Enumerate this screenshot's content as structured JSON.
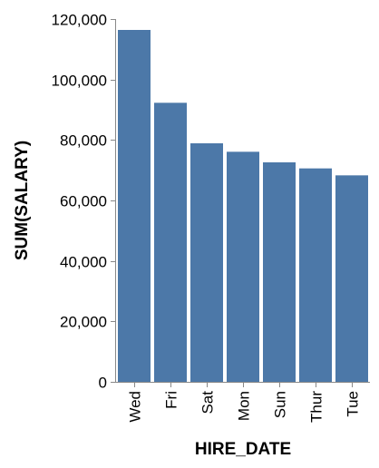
{
  "chart_data": {
    "type": "bar",
    "title": "",
    "xlabel": "HIRE_DATE",
    "ylabel": "SUM(SALARY)",
    "categories": [
      "Wed",
      "Fri",
      "Sat",
      "Mon",
      "Sun",
      "Thur",
      "Tue"
    ],
    "values": [
      116400,
      92300,
      78900,
      76100,
      72600,
      70600,
      68300
    ],
    "ylim": [
      0,
      120000
    ],
    "yticks": [
      0,
      20000,
      40000,
      60000,
      80000,
      100000,
      120000
    ],
    "ytick_labels": [
      "0",
      "20,000",
      "40,000",
      "60,000",
      "80,000",
      "100,000",
      "120,000"
    ],
    "grid": false,
    "legend": "none",
    "colors": {
      "bar": "#4c78a8",
      "axis": "#888888",
      "text": "#000000"
    }
  }
}
